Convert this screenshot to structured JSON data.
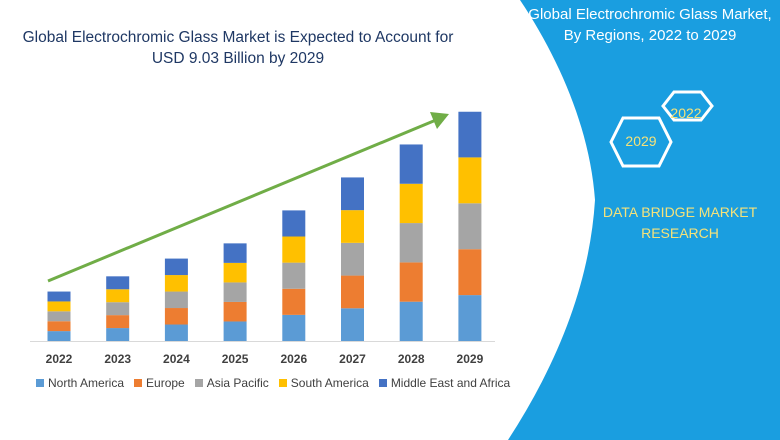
{
  "header": {
    "title": "Global Electrochromic Glass Market is Expected to Account for USD 9.03 Billion by 2029"
  },
  "side_panel": {
    "title": "Global Electrochromic Glass Market, By Regions, 2022 to 2029",
    "hex_labels": [
      "2022",
      "2029"
    ],
    "brand": "DATA BRIDGE MARKET RESEARCH",
    "panel_color": "#1a9ee0",
    "text_accent_color": "#f5e27a"
  },
  "chart_data": {
    "type": "bar",
    "stacked": true,
    "title": "Global Electrochromic Glass Market is Expected to Account for USD 9.03 Billion by 2029",
    "xlabel": "",
    "ylabel": "",
    "y_axis_shown": false,
    "grid": false,
    "legend_position": "bottom",
    "trend_arrow": {
      "color": "#70ad47",
      "from": "2022",
      "to": "2029"
    },
    "categories": [
      "2022",
      "2023",
      "2024",
      "2025",
      "2026",
      "2027",
      "2028",
      "2029"
    ],
    "series": [
      {
        "name": "North America",
        "color": "#5b9bd5",
        "values": [
          0.39,
          0.51,
          0.65,
          0.77,
          1.03,
          1.29,
          1.55,
          1.81
        ]
      },
      {
        "name": "Europe",
        "color": "#ed7d31",
        "values": [
          0.39,
          0.51,
          0.65,
          0.77,
          1.03,
          1.29,
          1.55,
          1.81
        ]
      },
      {
        "name": "Asia Pacific",
        "color": "#a5a5a5",
        "values": [
          0.39,
          0.51,
          0.65,
          0.77,
          1.03,
          1.29,
          1.55,
          1.81
        ]
      },
      {
        "name": "South America",
        "color": "#ffc000",
        "values": [
          0.39,
          0.51,
          0.65,
          0.77,
          1.03,
          1.29,
          1.55,
          1.81
        ]
      },
      {
        "name": "Middle East and Africa",
        "color": "#4472c4",
        "values": [
          0.39,
          0.51,
          0.65,
          0.77,
          1.03,
          1.29,
          1.55,
          1.8
        ]
      }
    ]
  }
}
